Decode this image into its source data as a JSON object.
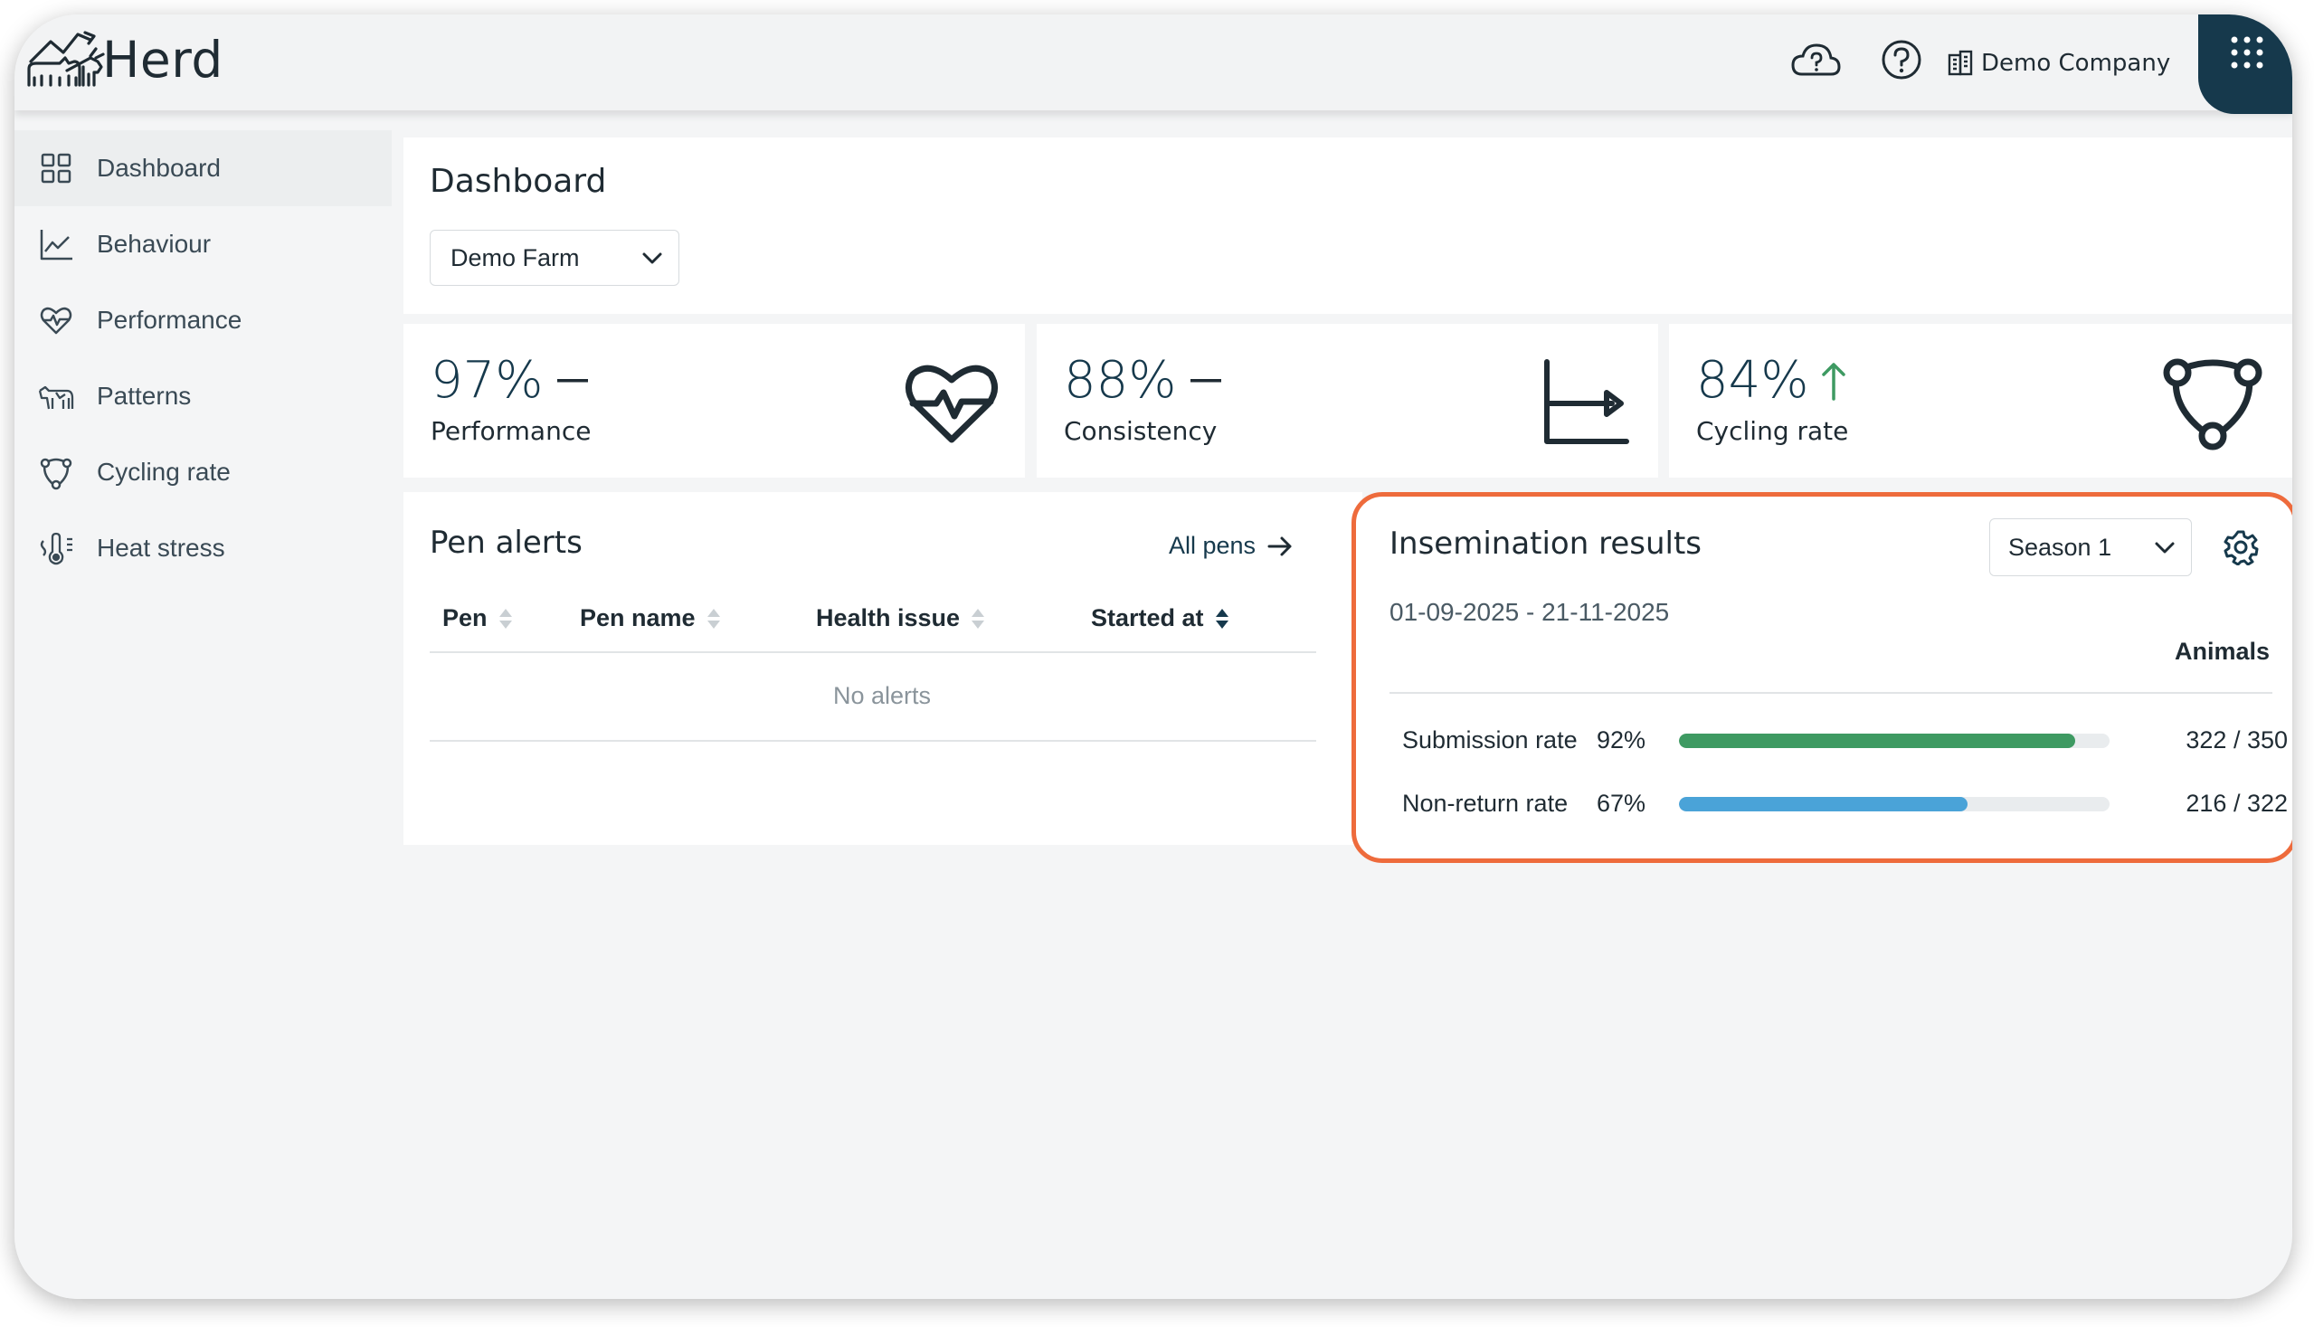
{
  "header": {
    "brand": "Herd",
    "company": "Demo Company",
    "icons": [
      "cloud-question-icon",
      "help-icon",
      "building-icon",
      "apps-grid-icon"
    ]
  },
  "sidebar": {
    "items": [
      {
        "label": "Dashboard",
        "icon": "dashboard-icon",
        "active": true
      },
      {
        "label": "Behaviour",
        "icon": "line-chart-icon",
        "active": false
      },
      {
        "label": "Performance",
        "icon": "heart-pulse-icon",
        "active": false
      },
      {
        "label": "Patterns",
        "icon": "cow-icon",
        "active": false
      },
      {
        "label": "Cycling rate",
        "icon": "cycle-icon",
        "active": false
      },
      {
        "label": "Heat stress",
        "icon": "thermometer-icon",
        "active": false
      }
    ]
  },
  "page": {
    "title": "Dashboard",
    "farm_select": "Demo Farm"
  },
  "kpis": [
    {
      "value": "97%",
      "label": "Performance",
      "trend": "flat",
      "icon": "heart-pulse-icon"
    },
    {
      "value": "88%",
      "label": "Consistency",
      "trend": "flat",
      "icon": "axis-arrow-icon"
    },
    {
      "value": "84%",
      "label": "Cycling rate",
      "trend": "up",
      "icon": "cycle-icon"
    }
  ],
  "pen_alerts": {
    "title": "Pen alerts",
    "link": "All pens",
    "columns": [
      "Pen",
      "Pen name",
      "Health issue",
      "Started at"
    ],
    "empty_text": "No alerts"
  },
  "insemination": {
    "title": "Insemination results",
    "season": "Season 1",
    "date_range": "01-09-2025 - 21-11-2025",
    "column": "Animals",
    "rows": [
      {
        "label": "Submission rate",
        "percent": "92%",
        "fraction": 0.92,
        "count": "322 / 350",
        "color": "#3e9a62"
      },
      {
        "label": "Non-return rate",
        "percent": "67%",
        "fraction": 0.67,
        "count": "216 / 322",
        "color": "#4aa3d8"
      }
    ]
  },
  "colors": {
    "primary": "#16394c",
    "highlight": "#ee6b3c",
    "trend_up": "#3e9a62"
  }
}
